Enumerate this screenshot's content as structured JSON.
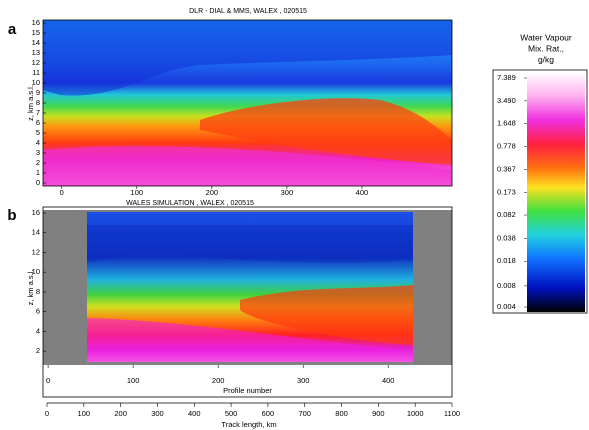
{
  "chart_data": [
    {
      "type": "heatmap",
      "panel_label": "a",
      "title": "DLR - DIAL & MMS, WALEX , 020515",
      "y_label": "z, km a.s.l.",
      "xlim": [
        -25,
        520
      ],
      "xticks": [
        0,
        100,
        200,
        300,
        400
      ],
      "ylim": [
        -0.3,
        16.3
      ],
      "yticks": [
        0,
        1,
        2,
        3,
        4,
        5,
        6,
        7,
        8,
        9,
        10,
        11,
        12,
        13,
        14,
        15,
        16
      ]
    },
    {
      "type": "heatmap",
      "panel_label": "b",
      "title": "WALES SIMULATION , WALEX , 020515",
      "y_label": "z, km a.s.l.",
      "xlim": [
        -6,
        475
      ],
      "xticks": [
        0,
        100,
        200,
        300,
        400
      ],
      "x_label": "Profile number",
      "ylim": [
        0.6,
        16.3
      ],
      "yticks": [
        2,
        4,
        6,
        8,
        10,
        12,
        14,
        16
      ],
      "x2lim": [
        0,
        1100
      ],
      "x2ticks": [
        0,
        100,
        200,
        300,
        400,
        500,
        600,
        700,
        800,
        900,
        1000,
        1100
      ],
      "x2_label": "Track length, km"
    },
    {
      "type": "colorbar",
      "title": [
        "Water Vapour",
        "Mix. Rat.,",
        "g/kg"
      ],
      "log": true,
      "ylim": [
        0.004,
        7.389
      ],
      "yticks": [
        {
          "value": 0.004,
          "label": "0.004"
        },
        {
          "value": 0.008,
          "label": "0.008"
        },
        0.018,
        0.038,
        0.082,
        0.173,
        0.367,
        0.778,
        1.648,
        {
          "value": 3.49,
          "label": "3.490"
        },
        7.389
      ]
    }
  ]
}
